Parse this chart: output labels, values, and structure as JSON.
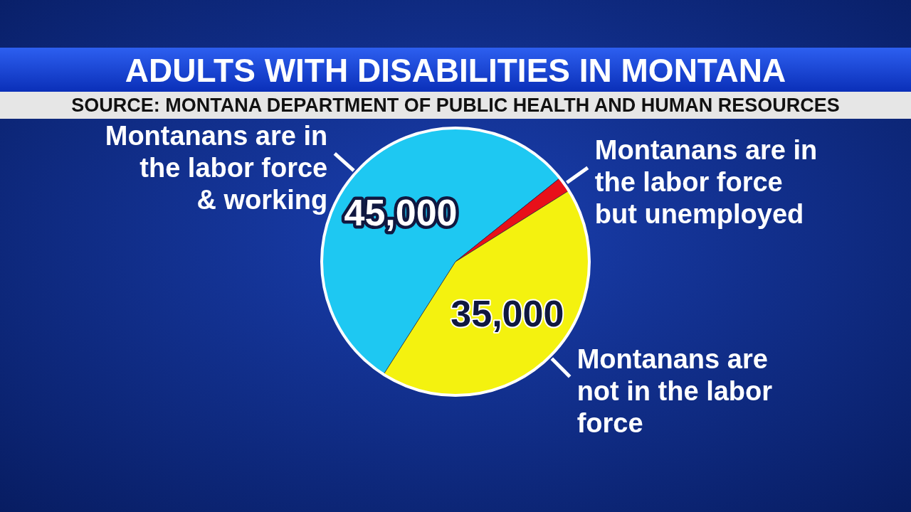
{
  "chart_data": {
    "type": "pie",
    "title": "ADULTS WITH DISABILITIES IN MONTANA",
    "annotations": [
      "SOURCE: MONTANA DEPARTMENT OF PUBLIC HEALTH AND HUMAN RESOURCES"
    ],
    "categories": [
      "Montanans are in the labor force & working",
      "Montanans are in the labor force but unemployed",
      "Montanans are not in the labor force"
    ],
    "values": [
      45000,
      1500,
      35000
    ],
    "colors": [
      "#1ec8f2",
      "#e8101a",
      "#f4f20f"
    ],
    "value_labels": [
      "45,000",
      null,
      "35,000"
    ]
  }
}
